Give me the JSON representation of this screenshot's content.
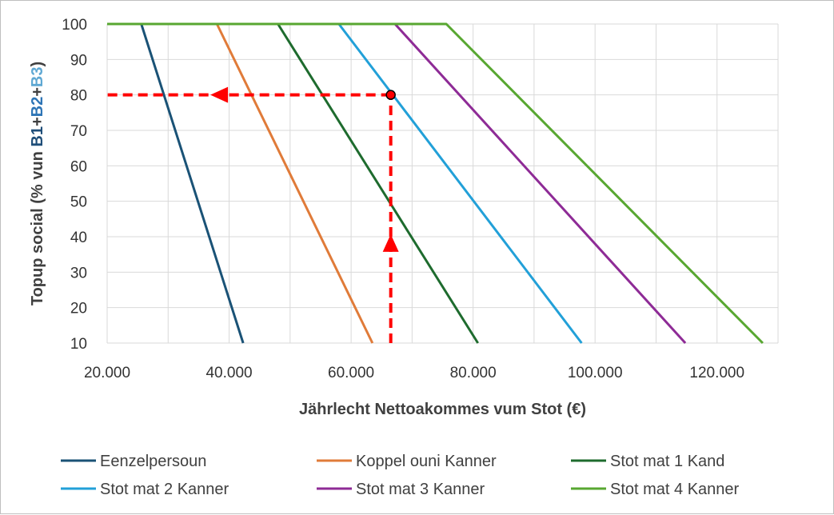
{
  "chart_data": {
    "type": "line",
    "xlabel": "Jährlecht Nettoakommes vum Stot (€)",
    "ylabel_parts": [
      {
        "text": "Topup social (% vun ",
        "color": "#404040"
      },
      {
        "text": "B1",
        "color": "#1f4e79"
      },
      {
        "text": "+",
        "color": "#404040"
      },
      {
        "text": "B2",
        "color": "#2e75b6"
      },
      {
        "text": "+",
        "color": "#404040"
      },
      {
        "text": "B3",
        "color": "#5fa8d3"
      },
      {
        "text": ")",
        "color": "#404040"
      }
    ],
    "xlim": [
      20000,
      130000
    ],
    "ylim": [
      10,
      100
    ],
    "x_ticks": [
      20000,
      40000,
      60000,
      80000,
      100000,
      120000
    ],
    "x_tick_labels": [
      "20.000",
      "40.000",
      "60.000",
      "80.000",
      "100.000",
      "120.000"
    ],
    "y_ticks": [
      10,
      20,
      30,
      40,
      50,
      60,
      70,
      80,
      90,
      100
    ],
    "y_tick_labels": [
      "10",
      "20",
      "30",
      "40",
      "50",
      "60",
      "70",
      "80",
      "90",
      "100"
    ],
    "grid": true,
    "legend_position": "bottom",
    "series": [
      {
        "name": "Eenzelpersoun",
        "color": "#1a5276",
        "x": [
          20000,
          25600,
          42300
        ],
        "y": [
          100,
          100,
          10
        ]
      },
      {
        "name": "Koppel ouni Kanner",
        "color": "#e07b39",
        "x": [
          20000,
          38000,
          63500
        ],
        "y": [
          100,
          100,
          10
        ]
      },
      {
        "name": "Stot mat 1 Kand",
        "color": "#1e6b2e",
        "x": [
          20000,
          48000,
          80800
        ],
        "y": [
          100,
          100,
          10
        ]
      },
      {
        "name": "Stot mat 2 Kanner",
        "color": "#22a0d8",
        "x": [
          20000,
          58000,
          97800
        ],
        "y": [
          100,
          100,
          10
        ]
      },
      {
        "name": "Stot mat 3 Kanner",
        "color": "#8e2b96",
        "x": [
          20000,
          67200,
          114800
        ],
        "y": [
          100,
          100,
          10
        ]
      },
      {
        "name": "Stot mat 4 Kanner",
        "color": "#58a731",
        "x": [
          20000,
          75600,
          127500
        ],
        "y": [
          100,
          100,
          10
        ]
      }
    ],
    "annotation": {
      "color": "#ff0000",
      "point": {
        "x": 66500,
        "y": 80
      },
      "vertical_from_y": 10,
      "horizontal_to_x": 20000,
      "arrow_up_at_y": 38,
      "arrow_left_at_x": 38500
    }
  }
}
